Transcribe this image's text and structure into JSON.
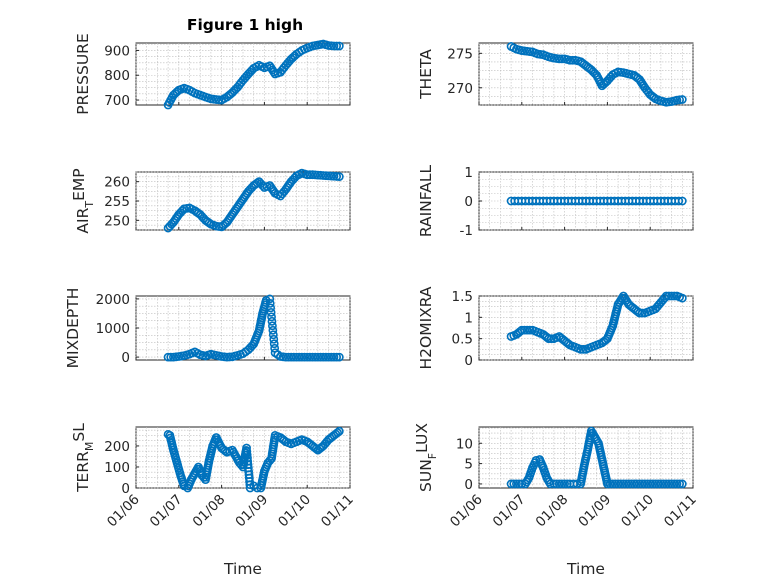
{
  "figure_title": "Figure 1 high",
  "colors": {
    "marker": "#0072BD",
    "axes": "#262626",
    "grid": "#bdbdbd"
  },
  "chart_data": [
    {
      "type": "scatter",
      "id": "pressure",
      "title": "Figure 1 high",
      "ylabel": "PRESSURE",
      "xlabel": "",
      "xlim": [
        "2018-01-06",
        "2018-01-11"
      ],
      "ylim": [
        680,
        930
      ],
      "yticks": [
        700,
        800,
        900
      ],
      "ytick_labels": [
        "700",
        "800",
        "900"
      ],
      "xticks": [],
      "xtick_labels": [],
      "marker": "o",
      "series": [
        {
          "x": [
            "2018-01-06T18:00",
            "2018-01-06T19:30",
            "2018-01-06T21:00",
            "2018-01-07T00:00",
            "2018-01-07T03:00",
            "2018-01-07T06:00",
            "2018-01-07T09:00",
            "2018-01-07T12:00",
            "2018-01-07T15:00",
            "2018-01-07T18:00",
            "2018-01-07T21:00",
            "2018-01-08T00:00",
            "2018-01-08T03:00",
            "2018-01-08T06:00",
            "2018-01-08T09:00",
            "2018-01-08T12:00",
            "2018-01-08T15:00",
            "2018-01-08T18:00",
            "2018-01-08T21:00",
            "2018-01-09T00:00",
            "2018-01-09T03:00",
            "2018-01-09T06:00",
            "2018-01-09T09:00",
            "2018-01-09T12:00",
            "2018-01-09T15:00",
            "2018-01-09T18:00",
            "2018-01-09T21:00",
            "2018-01-10T00:00",
            "2018-01-10T03:00",
            "2018-01-10T06:00",
            "2018-01-10T09:00",
            "2018-01-10T12:00",
            "2018-01-10T15:00",
            "2018-01-10T18:00"
          ],
          "y": [
            680,
            700,
            720,
            740,
            748,
            740,
            728,
            720,
            712,
            705,
            702,
            700,
            712,
            730,
            752,
            780,
            805,
            828,
            840,
            830,
            838,
            805,
            812,
            840,
            865,
            885,
            900,
            910,
            918,
            922,
            926,
            920,
            918,
            918
          ]
        }
      ]
    },
    {
      "type": "scatter",
      "id": "theta",
      "ylabel": "THETA",
      "xlabel": "",
      "xlim": [
        "2018-01-06",
        "2018-01-11"
      ],
      "ylim": [
        267.5,
        276.5
      ],
      "yticks": [
        270,
        275
      ],
      "ytick_labels": [
        "270",
        "275"
      ],
      "xticks": [],
      "xtick_labels": [],
      "marker": "o",
      "series": [
        {
          "x": [
            "2018-01-06T18:00",
            "2018-01-06T21:00",
            "2018-01-07T00:00",
            "2018-01-07T03:00",
            "2018-01-07T06:00",
            "2018-01-07T09:00",
            "2018-01-07T12:00",
            "2018-01-07T15:00",
            "2018-01-07T18:00",
            "2018-01-07T21:00",
            "2018-01-08T00:00",
            "2018-01-08T03:00",
            "2018-01-08T06:00",
            "2018-01-08T09:00",
            "2018-01-08T12:00",
            "2018-01-08T15:00",
            "2018-01-08T18:00",
            "2018-01-08T21:00",
            "2018-01-09T00:00",
            "2018-01-09T03:00",
            "2018-01-09T06:00",
            "2018-01-09T09:00",
            "2018-01-09T12:00",
            "2018-01-09T15:00",
            "2018-01-09T18:00",
            "2018-01-09T21:00",
            "2018-01-10T00:00",
            "2018-01-10T03:00",
            "2018-01-10T06:00",
            "2018-01-10T09:00",
            "2018-01-10T12:00",
            "2018-01-10T15:00",
            "2018-01-10T18:00"
          ],
          "y": [
            276.0,
            275.6,
            275.4,
            275.3,
            275.2,
            274.9,
            274.8,
            274.5,
            274.3,
            274.2,
            274.2,
            274.0,
            274.0,
            273.8,
            273.2,
            272.6,
            271.8,
            270.3,
            271.0,
            271.9,
            272.3,
            272.2,
            272.0,
            271.8,
            271.2,
            270.0,
            269.0,
            268.4,
            268.1,
            267.9,
            268.0,
            268.2,
            268.3
          ]
        }
      ]
    },
    {
      "type": "scatter",
      "id": "air_temp",
      "ylabel": "AIR_TEMP",
      "ylabel_display": {
        "main": "AIR",
        "sub": "T",
        "tail": "EMP"
      },
      "xlabel": "",
      "xlim": [
        "2018-01-06",
        "2018-01-11"
      ],
      "ylim": [
        247.5,
        262.5
      ],
      "yticks": [
        250,
        255,
        260
      ],
      "ytick_labels": [
        "250",
        "255",
        "260"
      ],
      "xticks": [],
      "xtick_labels": [],
      "marker": "o",
      "series": [
        {
          "x": [
            "2018-01-06T18:00",
            "2018-01-06T21:00",
            "2018-01-07T00:00",
            "2018-01-07T03:00",
            "2018-01-07T06:00",
            "2018-01-07T09:00",
            "2018-01-07T12:00",
            "2018-01-07T15:00",
            "2018-01-07T18:00",
            "2018-01-07T21:00",
            "2018-01-08T00:00",
            "2018-01-08T03:00",
            "2018-01-08T06:00",
            "2018-01-08T09:00",
            "2018-01-08T12:00",
            "2018-01-08T15:00",
            "2018-01-08T18:00",
            "2018-01-08T21:00",
            "2018-01-09T00:00",
            "2018-01-09T03:00",
            "2018-01-09T06:00",
            "2018-01-09T09:00",
            "2018-01-09T12:00",
            "2018-01-09T15:00",
            "2018-01-09T18:00",
            "2018-01-09T21:00",
            "2018-01-10T00:00",
            "2018-01-10T03:00",
            "2018-01-10T06:00",
            "2018-01-10T09:00",
            "2018-01-10T12:00",
            "2018-01-10T15:00",
            "2018-01-10T18:00"
          ],
          "y": [
            248.0,
            249.5,
            251.5,
            253.0,
            253.2,
            252.5,
            251.5,
            250.0,
            249.0,
            248.5,
            248.3,
            249.5,
            251.5,
            253.5,
            255.5,
            257.5,
            259.0,
            260.0,
            258.5,
            259.0,
            257.0,
            256.3,
            258.0,
            260.0,
            261.5,
            262.2,
            261.8,
            261.8,
            261.7,
            261.6,
            261.5,
            261.4,
            261.3
          ]
        }
      ]
    },
    {
      "type": "scatter",
      "id": "rainfall",
      "ylabel": "RAINFALL",
      "xlabel": "",
      "xlim": [
        "2018-01-06",
        "2018-01-11"
      ],
      "ylim": [
        -1,
        1
      ],
      "yticks": [
        -1,
        0,
        1
      ],
      "ytick_labels": [
        "-1",
        "0",
        "1"
      ],
      "xticks": [],
      "xtick_labels": [],
      "marker": "o",
      "series": [
        {
          "x_start": "2018-01-06T18:00",
          "x_end": "2018-01-10T18:00",
          "step_hours": 2,
          "y_constant": 0
        }
      ]
    },
    {
      "type": "scatter",
      "id": "mixdepth",
      "ylabel": "MIXDEPTH",
      "xlabel": "",
      "xlim": [
        "2018-01-06",
        "2018-01-11"
      ],
      "ylim": [
        -100,
        2100
      ],
      "yticks": [
        0,
        1000,
        2000
      ],
      "ytick_labels": [
        "0",
        "1000",
        "2000"
      ],
      "xticks": [],
      "xtick_labels": [],
      "marker": "o",
      "series": [
        {
          "x": [
            "2018-01-06T18:00",
            "2018-01-06T21:00",
            "2018-01-07T00:00",
            "2018-01-07T03:00",
            "2018-01-07T06:00",
            "2018-01-07T09:00",
            "2018-01-07T12:00",
            "2018-01-07T15:00",
            "2018-01-07T18:00",
            "2018-01-07T21:00",
            "2018-01-08T00:00",
            "2018-01-08T03:00",
            "2018-01-08T06:00",
            "2018-01-08T09:00",
            "2018-01-08T12:00",
            "2018-01-08T15:00",
            "2018-01-08T18:00",
            "2018-01-08T21:00",
            "2018-01-08T23:00",
            "2018-01-09T01:00",
            "2018-01-09T03:00",
            "2018-01-09T06:00",
            "2018-01-09T09:00",
            "2018-01-09T12:00",
            "2018-01-09T15:00",
            "2018-01-09T18:00",
            "2018-01-09T21:00",
            "2018-01-10T00:00",
            "2018-01-10T03:00",
            "2018-01-10T06:00",
            "2018-01-10T09:00",
            "2018-01-10T12:00",
            "2018-01-10T15:00",
            "2018-01-10T18:00"
          ],
          "y": [
            0,
            0,
            20,
            50,
            100,
            180,
            80,
            40,
            100,
            60,
            20,
            0,
            10,
            60,
            120,
            250,
            450,
            900,
            1500,
            1950,
            2000,
            150,
            20,
            0,
            0,
            0,
            0,
            0,
            0,
            0,
            0,
            0,
            0,
            0
          ]
        }
      ]
    },
    {
      "type": "scatter",
      "id": "h2omixra",
      "ylabel": "H2OMIXRA",
      "xlabel": "",
      "xlim": [
        "2018-01-06",
        "2018-01-11"
      ],
      "ylim": [
        0,
        1.5
      ],
      "yticks": [
        0,
        0.5,
        1,
        1.5
      ],
      "ytick_labels": [
        "0",
        "0.5",
        "1",
        "1.5"
      ],
      "xticks": [],
      "xtick_labels": [],
      "marker": "o",
      "series": [
        {
          "x": [
            "2018-01-06T18:00",
            "2018-01-06T21:00",
            "2018-01-07T00:00",
            "2018-01-07T03:00",
            "2018-01-07T06:00",
            "2018-01-07T09:00",
            "2018-01-07T12:00",
            "2018-01-07T15:00",
            "2018-01-07T18:00",
            "2018-01-07T21:00",
            "2018-01-08T00:00",
            "2018-01-08T03:00",
            "2018-01-08T06:00",
            "2018-01-08T09:00",
            "2018-01-08T12:00",
            "2018-01-08T15:00",
            "2018-01-08T18:00",
            "2018-01-08T21:00",
            "2018-01-09T00:00",
            "2018-01-09T03:00",
            "2018-01-09T06:00",
            "2018-01-09T09:00",
            "2018-01-09T12:00",
            "2018-01-09T15:00",
            "2018-01-09T18:00",
            "2018-01-09T21:00",
            "2018-01-10T00:00",
            "2018-01-10T03:00",
            "2018-01-10T06:00",
            "2018-01-10T09:00",
            "2018-01-10T12:00",
            "2018-01-10T15:00",
            "2018-01-10T18:00"
          ],
          "y": [
            0.55,
            0.6,
            0.7,
            0.7,
            0.7,
            0.65,
            0.6,
            0.5,
            0.5,
            0.55,
            0.45,
            0.35,
            0.3,
            0.25,
            0.25,
            0.3,
            0.35,
            0.4,
            0.5,
            0.8,
            1.3,
            1.5,
            1.3,
            1.2,
            1.1,
            1.1,
            1.15,
            1.2,
            1.35,
            1.5,
            1.5,
            1.5,
            1.45
          ]
        }
      ]
    },
    {
      "type": "scatter",
      "id": "terr_msl",
      "ylabel": "TERR_MSL",
      "ylabel_display": {
        "main": "TERR",
        "sub": "M",
        "tail": "SL"
      },
      "xlabel": "Time",
      "xlim": [
        "2018-01-06",
        "2018-01-11"
      ],
      "ylim": [
        0,
        290
      ],
      "yticks": [
        0,
        100,
        200
      ],
      "ytick_labels": [
        "0",
        "100",
        "200"
      ],
      "xticks": [
        "2018-01-06",
        "2018-01-07",
        "2018-01-08",
        "2018-01-09",
        "2018-01-10",
        "2018-01-11"
      ],
      "xtick_labels": [
        "01/06",
        "01/07",
        "01/08",
        "01/09",
        "01/10",
        "01/11"
      ],
      "marker": "o",
      "series": [
        {
          "x": [
            "2018-01-06T18:00",
            "2018-01-06T19:00",
            "2018-01-06T21:00",
            "2018-01-06T23:00",
            "2018-01-07T01:00",
            "2018-01-07T03:00",
            "2018-01-07T05:00",
            "2018-01-07T07:00",
            "2018-01-07T09:00",
            "2018-01-07T11:00",
            "2018-01-07T13:00",
            "2018-01-07T15:00",
            "2018-01-07T17:00",
            "2018-01-07T19:00",
            "2018-01-07T21:00",
            "2018-01-08T00:00",
            "2018-01-08T03:00",
            "2018-01-08T06:00",
            "2018-01-08T08:00",
            "2018-01-08T10:00",
            "2018-01-08T12:00",
            "2018-01-08T14:00",
            "2018-01-08T16:00",
            "2018-01-08T18:00",
            "2018-01-08T20:00",
            "2018-01-08T22:00",
            "2018-01-09T00:00",
            "2018-01-09T02:00",
            "2018-01-09T04:00",
            "2018-01-09T06:00",
            "2018-01-09T09:00",
            "2018-01-09T12:00",
            "2018-01-09T15:00",
            "2018-01-09T18:00",
            "2018-01-09T21:00",
            "2018-01-10T00:00",
            "2018-01-10T03:00",
            "2018-01-10T06:00",
            "2018-01-10T09:00",
            "2018-01-10T12:00",
            "2018-01-10T15:00",
            "2018-01-10T18:00"
          ],
          "y": [
            255,
            250,
            180,
            120,
            60,
            10,
            0,
            40,
            70,
            100,
            60,
            40,
            130,
            200,
            240,
            190,
            170,
            180,
            150,
            120,
            100,
            190,
            0,
            10,
            0,
            0,
            80,
            120,
            140,
            250,
            240,
            220,
            210,
            220,
            230,
            220,
            200,
            180,
            200,
            230,
            250,
            270
          ]
        }
      ]
    },
    {
      "type": "scatter",
      "id": "sun_flux",
      "ylabel": "SUN_FLUX",
      "ylabel_display": {
        "main": "SUN",
        "sub": "F",
        "tail": "LUX"
      },
      "xlabel": "Time",
      "xlim": [
        "2018-01-06",
        "2018-01-11"
      ],
      "ylim": [
        -1,
        14
      ],
      "yticks": [
        0,
        5,
        10
      ],
      "ytick_labels": [
        "0",
        "5",
        "10"
      ],
      "xticks": [
        "2018-01-06",
        "2018-01-07",
        "2018-01-08",
        "2018-01-09",
        "2018-01-10",
        "2018-01-11"
      ],
      "xtick_labels": [
        "01/06",
        "01/07",
        "01/08",
        "01/09",
        "01/10",
        "01/11"
      ],
      "marker": "o",
      "series": [
        {
          "x": [
            "2018-01-06T18:00",
            "2018-01-06T21:00",
            "2018-01-07T00:00",
            "2018-01-07T02:00",
            "2018-01-07T04:00",
            "2018-01-07T06:00",
            "2018-01-07T08:00",
            "2018-01-07T10:00",
            "2018-01-07T12:00",
            "2018-01-07T14:00",
            "2018-01-07T16:00",
            "2018-01-07T18:00",
            "2018-01-07T21:00",
            "2018-01-08T00:00",
            "2018-01-08T03:00",
            "2018-01-08T05:00",
            "2018-01-08T07:00",
            "2018-01-08T09:00",
            "2018-01-08T11:00",
            "2018-01-08T13:00",
            "2018-01-08T15:00",
            "2018-01-08T17:00",
            "2018-01-08T19:00",
            "2018-01-08T21:00",
            "2018-01-09T00:00",
            "2018-01-09T03:00",
            "2018-01-09T06:00",
            "2018-01-09T09:00",
            "2018-01-09T12:00",
            "2018-01-09T15:00",
            "2018-01-09T18:00",
            "2018-01-09T21:00",
            "2018-01-10T00:00",
            "2018-01-10T03:00",
            "2018-01-10T06:00",
            "2018-01-10T09:00",
            "2018-01-10T12:00",
            "2018-01-10T15:00",
            "2018-01-10T18:00"
          ],
          "y": [
            0,
            0,
            0,
            0,
            1.5,
            4.0,
            5.8,
            6.0,
            4.0,
            1.5,
            0,
            0,
            0,
            0,
            0,
            0,
            0,
            0,
            4.5,
            8.5,
            13.0,
            11.5,
            10.0,
            6.0,
            0,
            0,
            0,
            0,
            0,
            0,
            0,
            0,
            0,
            0,
            0,
            0,
            0,
            0,
            0
          ]
        }
      ]
    }
  ]
}
